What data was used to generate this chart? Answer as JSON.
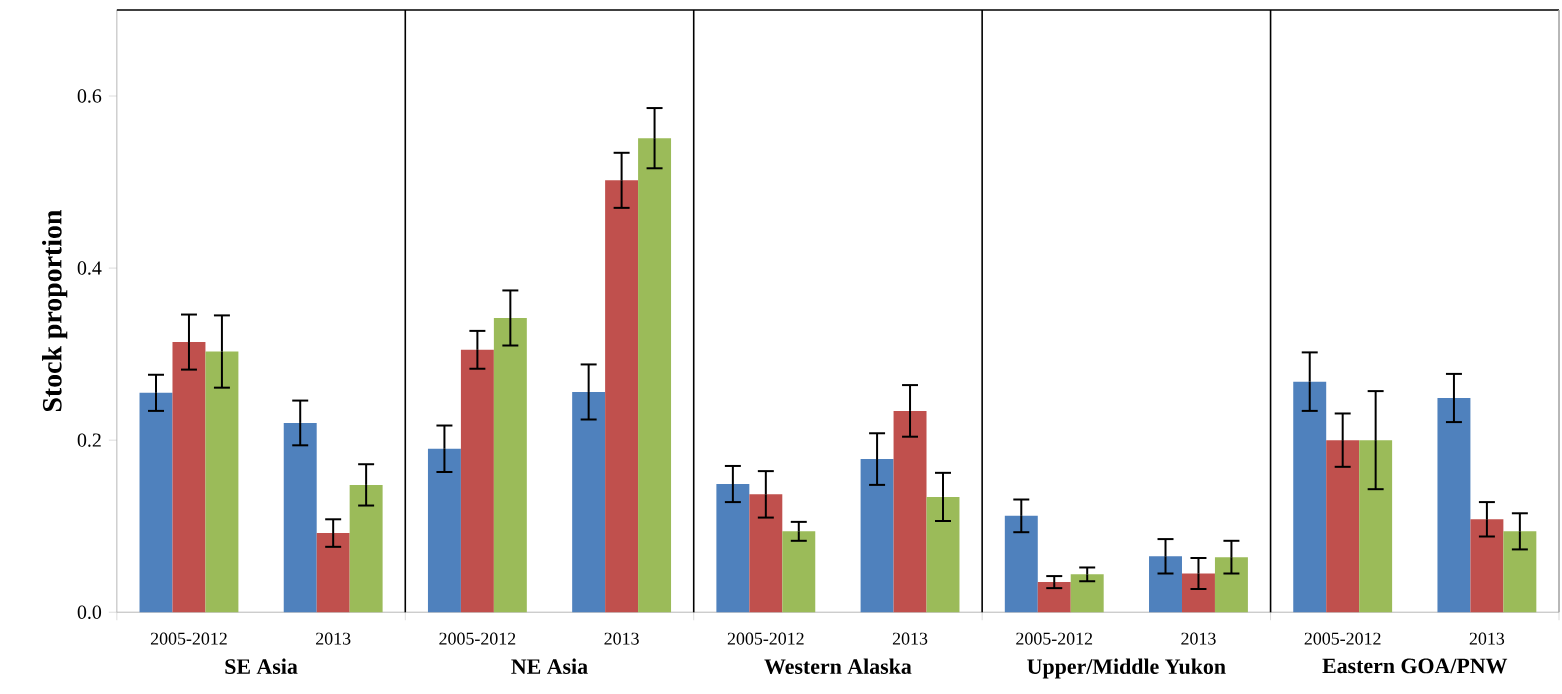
{
  "chart_data": {
    "type": "bar",
    "ylabel": "Stock proportion",
    "categories": [
      "2005-2012",
      "2013",
      "2005-2012",
      "2013",
      "2005-2012",
      "2013",
      "2005-2012",
      "2013",
      "2005-2012",
      "2013"
    ],
    "annotations": [
      "SE Asia",
      "NE Asia",
      "Western Alaska",
      "Upper/Middle Yukon",
      "Eastern GOA/PNW"
    ],
    "series": [
      {
        "color": "#4f81bd",
        "values": [
          0.255,
          0.22,
          0.19,
          0.256,
          0.149,
          0.178,
          0.112,
          0.065,
          0.268,
          0.249
        ],
        "errors": [
          0.021,
          0.026,
          0.027,
          0.032,
          0.021,
          0.03,
          0.019,
          0.02,
          0.034,
          0.028
        ]
      },
      {
        "color": "#c0504d",
        "values": [
          0.314,
          0.092,
          0.305,
          0.502,
          0.137,
          0.234,
          0.035,
          0.045,
          0.2,
          0.108
        ],
        "errors": [
          0.032,
          0.016,
          0.022,
          0.032,
          0.027,
          0.03,
          0.007,
          0.018,
          0.031,
          0.02
        ]
      },
      {
        "color": "#9bbb59",
        "values": [
          0.303,
          0.148,
          0.342,
          0.551,
          0.094,
          0.134,
          0.044,
          0.064,
          0.2,
          0.094
        ],
        "errors": [
          0.042,
          0.024,
          0.032,
          0.035,
          0.011,
          0.028,
          0.008,
          0.019,
          0.057,
          0.021
        ]
      }
    ],
    "ylim": [
      0,
      0.7
    ],
    "yticks": [
      {
        "value": 0,
        "label": "0.0"
      },
      0.2,
      0.4,
      0.6
    ]
  }
}
